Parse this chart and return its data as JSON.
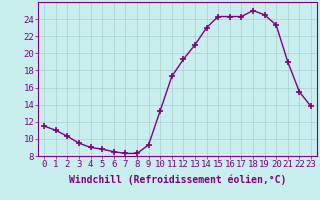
{
  "x": [
    0,
    1,
    2,
    3,
    4,
    5,
    6,
    7,
    8,
    9,
    10,
    11,
    12,
    13,
    14,
    15,
    16,
    17,
    18,
    19,
    20,
    21,
    22,
    23
  ],
  "y": [
    11.5,
    11.0,
    10.3,
    9.5,
    9.0,
    8.8,
    8.5,
    8.3,
    8.3,
    9.3,
    13.3,
    17.3,
    19.3,
    21.0,
    23.0,
    24.3,
    24.3,
    24.3,
    25.0,
    24.5,
    23.3,
    19.0,
    15.5,
    13.8
  ],
  "ylim": [
    8,
    26
  ],
  "yticks": [
    8,
    10,
    12,
    14,
    16,
    18,
    20,
    22,
    24
  ],
  "xticks": [
    0,
    1,
    2,
    3,
    4,
    5,
    6,
    7,
    8,
    9,
    10,
    11,
    12,
    13,
    14,
    15,
    16,
    17,
    18,
    19,
    20,
    21,
    22,
    23
  ],
  "xlabel": "Windchill (Refroidissement éolien,°C)",
  "line_color": "#800080",
  "marker": "+",
  "marker_size": 4,
  "marker_lw": 1.2,
  "line_width": 1.0,
  "bg_color": "#c8eeee",
  "grid_color": "#aacccc",
  "axis_color": "#800080",
  "tick_color": "#800080",
  "label_color": "#800080",
  "font_size": 6.5,
  "xlabel_fontsize": 7.0
}
